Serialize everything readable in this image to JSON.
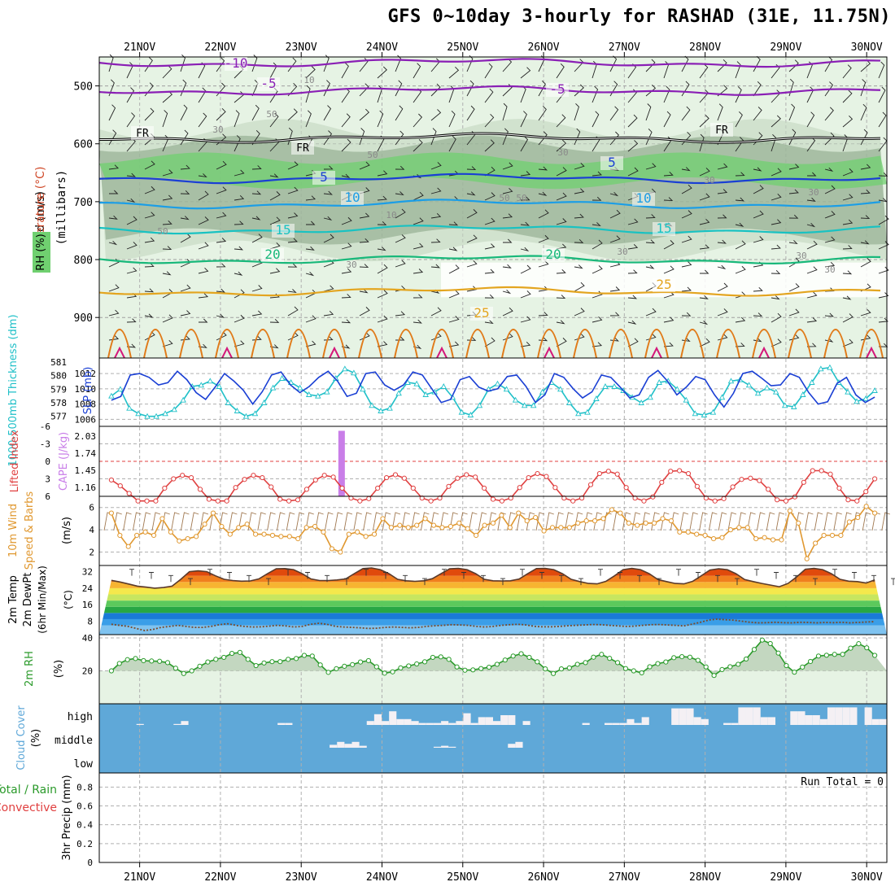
{
  "header": {
    "title": "GFS 0~10day 3-hourly for RASHAD (31E, 11.75N)"
  },
  "colors": {
    "purple": "#8a1fb5",
    "navy": "#1a3fd4",
    "sky": "#1c9ee6",
    "teal": "#19c2c2",
    "green": "#18b87a",
    "gold": "#e3a520",
    "orange": "#e07b1a",
    "magenta": "#d4187a",
    "rh_light": "#e6f3e4",
    "rh_mid": "#c3d7c0",
    "rh_dark": "#8ca88a",
    "rh_green": "#70d070",
    "slp": "#1a3fd4",
    "thickness": "#20c0c8",
    "lifted": "#e04040",
    "cape": "#c97ee8",
    "wind10": "#e09830",
    "barb": "#a07850",
    "rh2m": "#2a9a2a",
    "cloud": "#5fa8d8",
    "cloud_fill": "#f4f0f4"
  },
  "chart_data": [
    {
      "type": "line",
      "panel": "cross-section",
      "ylabels": {
        "wind": "Wind (m/s)",
        "temperature": "Temperature (°C)",
        "rh": "RH (%)",
        "units": "(millibars)"
      },
      "yticks": [
        "500",
        "600",
        "700",
        "800",
        "900"
      ],
      "ylim": [
        970,
        450
      ],
      "temperature_contours": [
        {
          "label": "-10",
          "level": 460
        },
        {
          "label": "-5",
          "level": 508
        },
        {
          "label": "FR",
          "level": 590
        },
        {
          "label": "5",
          "level": 660
        },
        {
          "label": "10",
          "level": 704
        },
        {
          "label": "15",
          "level": 748
        },
        {
          "label": "20",
          "level": 800
        },
        {
          "label": "25",
          "level": 855
        }
      ],
      "rh_contours": [
        "30",
        "50",
        "10",
        "50",
        "30",
        "50",
        "10",
        "30",
        "30",
        "30",
        "50",
        "30",
        "50",
        "30",
        "30"
      ],
      "contour_labels": [
        "-10",
        "-5",
        "-5",
        "FR",
        "FR",
        "FR",
        "5",
        "5",
        "10",
        "10",
        "15",
        "15",
        "20",
        "20",
        "25",
        "25"
      ]
    },
    {
      "type": "line",
      "panel": "slp-thickness",
      "ylabels": {
        "thickness": "1000-500mb Thickness (dm)",
        "slp": "SLP (mb)"
      },
      "left_ticks": [
        "581",
        "580",
        "579",
        "578",
        "577"
      ],
      "right_ticks": [
        "1012",
        "1010",
        "1008",
        "1006"
      ],
      "thickness_ylim": [
        576.5,
        581
      ],
      "slp_ylim": [
        1005.5,
        1013.5
      ],
      "slp_values": [
        1008.5,
        1009,
        1011.8,
        1012,
        1011.5,
        1010.5,
        1010.8,
        1012.3,
        1011.2,
        1009.5,
        1008.6,
        1010.2,
        1012,
        1011,
        1009.8,
        1008,
        1009.6,
        1011.8,
        1012.2,
        1010.5,
        1009.5,
        1010.3,
        1011.5,
        1012.3,
        1011,
        1009,
        1009.4,
        1012,
        1012.2,
        1010.5,
        1009.8,
        1010.5,
        1012.2,
        1011.8,
        1010,
        1008.2,
        1008.6,
        1011.2,
        1011.6,
        1010.2,
        1009.7,
        1010,
        1011.6,
        1011.8,
        1010.3,
        1008.2,
        1009.2,
        1012,
        1011.5,
        1010,
        1008.8,
        1009.6,
        1011.8,
        1011.5,
        1010.2,
        1008.8,
        1009.2,
        1011.5,
        1012.4,
        1011,
        1009.2,
        1010.2,
        1011.6,
        1011.2,
        1009.2,
        1007.6,
        1009.4,
        1012,
        1012.3,
        1011.4,
        1010.4,
        1010.5,
        1012,
        1011.5,
        1009.5,
        1008,
        1008.3,
        1010.7,
        1011.5,
        1009.2,
        1008.2,
        1008.9
      ],
      "thickness_values": [
        578.5,
        579,
        577.6,
        577.2,
        577,
        577,
        577.2,
        577.5,
        578.2,
        579.2,
        579.3,
        579.6,
        579.2,
        578,
        577.4,
        577,
        577.2,
        578,
        579.1,
        579.8,
        579.5,
        579.1,
        578.6,
        578.5,
        578.8,
        579.8,
        580.5,
        580.2,
        579,
        577.8,
        577.4,
        577.6,
        578.7,
        579.5,
        579.4,
        578.6,
        578.8,
        579.2,
        578.4,
        577.3,
        577.1,
        577.8,
        579,
        579.4,
        579,
        578.2,
        577.8,
        577.8,
        578.8,
        579.5,
        579,
        578,
        577.2,
        577.3,
        578.3,
        579.2,
        579.2,
        578.9,
        578.4,
        578,
        578.4,
        579.5,
        579.6,
        579,
        578.2,
        577.2,
        577.1,
        577.3,
        578.4,
        579.6,
        579.7,
        579.3,
        578.7,
        579.1,
        578.8,
        577.8,
        577.7,
        578.6,
        579.5,
        580.5,
        580.6,
        579.5,
        578.8,
        578.1,
        578.3,
        578.9
      ]
    },
    {
      "type": "bar",
      "panel": "lifted-cape",
      "ylabels": {
        "lifted": "Lifted Index",
        "cape": "CAPE (J/kg)"
      },
      "left_ticks": [
        "-6",
        "-3",
        "0",
        "3",
        "6"
      ],
      "right_ticks": [
        "2.03",
        "1.74",
        "1.45",
        "1.16"
      ],
      "ylim": [
        6,
        -6
      ],
      "cape_bars": [
        {
          "x": 23.5,
          "value": 2.03
        }
      ],
      "lifted_values": [
        3.2,
        4.2,
        5.5,
        7,
        8,
        7.5,
        4.6,
        3,
        2.4,
        2.8,
        4.8,
        6.5,
        7.5,
        6.8,
        4.5,
        3.1,
        2.4,
        2.8,
        4.4,
        6.5,
        7.6,
        6.6,
        4.8,
        3.2,
        2.4,
        2.7,
        4.6,
        6.3,
        7.4,
        6.4,
        4.6,
        2.8,
        2.3,
        2.9,
        4.6,
        6.3,
        7.4,
        6.3,
        4.3,
        2.9,
        2.3,
        2.7,
        4.6,
        6.5,
        7.4,
        6.3,
        4.5,
        2.8,
        2.1,
        2.6,
        4.5,
        6.3,
        7.5,
        6.3,
        4,
        2.1,
        1.7,
        2.2,
        4.5,
        6.3,
        7.4,
        6.1,
        3.6,
        1.7,
        1.6,
        2.1,
        4.3,
        6.3,
        7.4,
        6.4,
        4.4,
        3.1,
        2.9,
        3.3,
        4.8,
        6.6,
        7.5,
        6.1,
        3.6,
        1.6,
        1.6,
        2.2,
        4.6,
        6.6,
        7.4,
        5.2,
        3
      ]
    },
    {
      "type": "line",
      "panel": "wind10",
      "ylabels": {
        "wind10": "10m Wind",
        "speed": "Speed & Barbs",
        "units": "(m/s)"
      },
      "yticks": [
        "6",
        "4",
        "2"
      ],
      "ylim": [
        0.8,
        7
      ],
      "values": [
        5.5,
        3.5,
        2.5,
        3.5,
        3.8,
        3.5,
        5,
        3.8,
        3,
        3.2,
        3.4,
        4.5,
        5.5,
        4.3,
        3.6,
        4.2,
        4.5,
        3.6,
        3.6,
        3.5,
        3.4,
        3.4,
        3.2,
        4.2,
        4.3,
        3.8,
        2.3,
        2,
        3.6,
        3.8,
        3.4,
        3.6,
        5,
        4.2,
        4.4,
        4.2,
        4.4,
        5,
        4.4,
        4.2,
        4.3,
        4.6,
        4.1,
        3.5,
        4.4,
        4.6,
        5.3,
        4.2,
        5.5,
        4.8,
        5.1,
        3.9,
        4.2,
        4.2,
        4.2,
        4.6,
        4.8,
        4.8,
        5,
        5.8,
        5.5,
        4.6,
        4.4,
        4.6,
        4.6,
        5,
        4.8,
        3.8,
        3.8,
        3.6,
        3.5,
        3.2,
        3.3,
        4,
        4.2,
        4.2,
        3.2,
        3.3,
        3.1,
        3.1,
        5.7,
        4.6,
        1.4,
        2.8,
        3.5,
        3.5,
        3.5,
        4.7,
        5.1,
        6.1,
        5.5
      ]
    },
    {
      "type": "area",
      "panel": "temp-dewpt",
      "ylabels": {
        "temp": "2m Temp",
        "dewpt": "2m DewPt",
        "minmax": "(6hr Min/Max)",
        "units": "(°C)"
      },
      "yticks": [
        "32",
        "24",
        "16",
        "8"
      ],
      "ylim": [
        1.5,
        35
      ],
      "temp_values": [
        27.8,
        27,
        26,
        25,
        24.5,
        24,
        24.3,
        25,
        28.3,
        32,
        32.4,
        32,
        30,
        28.3,
        27.7,
        27.4,
        27.5,
        28.5,
        31,
        33.4,
        33.5,
        33,
        31,
        28.5,
        27.7,
        27.7,
        28,
        28.5,
        31,
        33.5,
        33.8,
        33,
        31,
        28.3,
        27.6,
        27.3,
        27.6,
        28.6,
        31,
        33.4,
        33.6,
        33,
        31,
        28.3,
        27.6,
        27.5,
        27.6,
        28.4,
        31,
        33.5,
        33.6,
        33,
        31,
        28.3,
        27.2,
        26.3,
        26.1,
        27.3,
        30,
        33,
        33.6,
        33,
        31,
        28.2,
        27.2,
        26.3,
        26.1,
        27.3,
        30,
        32.8,
        33.4,
        33,
        31,
        28.2,
        27.2,
        26.3,
        25.5,
        24.7,
        26.3,
        29.5,
        33.2,
        33.6,
        33,
        31,
        28.3,
        27.4,
        27.2,
        26.5,
        28
      ],
      "dewpt_values": [
        6.5,
        6,
        5.5,
        4.5,
        3.5,
        4,
        5,
        5.5,
        6,
        5.5,
        5,
        5,
        5.5,
        6.3,
        6.8,
        6,
        5.5,
        5.2,
        5.3,
        5.6,
        6,
        5.7,
        5.2,
        5.5,
        6.5,
        7,
        6.5,
        5.5,
        5.2,
        5,
        4.8,
        4.5,
        4.6,
        5,
        5.2,
        5,
        4.8,
        5,
        5.5,
        5.8,
        6,
        6.3,
        6.2,
        6,
        5.5,
        5.2,
        5.5,
        6,
        6.3,
        6.5,
        6.2,
        5.5,
        5.3,
        5.3,
        5.5,
        5.8,
        6,
        6.2,
        6.4,
        6.3,
        6,
        5.7,
        5.5,
        5.6,
        6,
        6.3,
        6.4,
        6.2,
        6,
        5.7,
        6.6,
        7.5,
        8.6,
        9,
        8.7,
        8.5,
        8,
        7.5,
        7.2,
        7.3,
        7.5,
        7.3,
        7.2,
        7.5,
        7.4,
        7.2,
        7.4,
        7.3,
        7.5,
        7.2,
        7.4,
        7.6,
        7.8
      ]
    },
    {
      "type": "line",
      "panel": "rh2m",
      "ylabels": {
        "rh": "2m RH",
        "units": "(%)"
      },
      "yticks": [
        "40",
        "20"
      ],
      "ylim": [
        0,
        42
      ],
      "values": [
        20,
        24.5,
        26.8,
        27.5,
        26.2,
        26,
        25.8,
        25,
        21.6,
        18.4,
        20,
        22.8,
        25.4,
        27,
        28.2,
        30.6,
        31.2,
        27,
        23.2,
        24.8,
        25.6,
        25.6,
        27,
        27.5,
        29.4,
        29,
        23.6,
        19.1,
        21.3,
        22.8,
        23.8,
        25.4,
        26.2,
        22.5,
        18.6,
        19.4,
        21.8,
        23,
        24.2,
        25.5,
        28.2,
        28.5,
        27,
        22.4,
        20.4,
        20.6,
        21.4,
        22.2,
        24,
        26.6,
        29,
        30.4,
        28.2,
        25.5,
        21.2,
        18.4,
        21.2,
        21.8,
        24,
        25,
        28.3,
        30,
        27.6,
        25,
        21.4,
        20,
        18.8,
        22.5,
        24.4,
        25.4,
        28,
        28.6,
        28.3,
        26.4,
        22.4,
        17.2,
        20.8,
        22.5,
        24,
        27.2,
        33,
        38.7,
        36.6,
        30.8,
        23.2,
        19.2,
        22.3,
        25.7,
        29,
        29.5,
        30,
        30,
        33.8,
        36.5,
        34,
        29.4
      ]
    },
    {
      "type": "bar",
      "panel": "cloud",
      "ylabels": {
        "cloud": "Cloud Cover",
        "units": "(%)"
      },
      "yticks": [
        "high",
        "middle",
        "low"
      ],
      "high_values": [
        0,
        0,
        0,
        0,
        0,
        5,
        0,
        0,
        0,
        0,
        5,
        20,
        0,
        0,
        0,
        0,
        0,
        0,
        0,
        0,
        0,
        0,
        0,
        0,
        10,
        10,
        0,
        0,
        0,
        0,
        0,
        0,
        0,
        0,
        0,
        0,
        20,
        55,
        20,
        70,
        30,
        30,
        20,
        10,
        10,
        10,
        20,
        10,
        20,
        60,
        10,
        40,
        40,
        20,
        50,
        50,
        0,
        20,
        0,
        0,
        0,
        0,
        0,
        0,
        0,
        10,
        0,
        0,
        10,
        10,
        10,
        30,
        10,
        40,
        0,
        0,
        0,
        85,
        85,
        85,
        40,
        30,
        0,
        0,
        10,
        10,
        90,
        90,
        90,
        40,
        40,
        0,
        0,
        70,
        70,
        50,
        50,
        30,
        90,
        90,
        90,
        90,
        0,
        90,
        30,
        30
      ],
      "middle_values": [
        0,
        0,
        0,
        0,
        0,
        0,
        0,
        0,
        0,
        0,
        0,
        0,
        0,
        0,
        0,
        0,
        0,
        0,
        0,
        0,
        0,
        0,
        0,
        0,
        0,
        0,
        0,
        0,
        0,
        0,
        0,
        15,
        30,
        20,
        30,
        10,
        0,
        0,
        0,
        0,
        0,
        0,
        0,
        0,
        0,
        5,
        10,
        5,
        0,
        0,
        0,
        0,
        0,
        0,
        0,
        20,
        30,
        0,
        0,
        0,
        0,
        0,
        0,
        0,
        0,
        0,
        0,
        0,
        0,
        0,
        0,
        0,
        0,
        0,
        0,
        0,
        0,
        0,
        0,
        0,
        0,
        0,
        0,
        0,
        0,
        0,
        0,
        0,
        0,
        0,
        0,
        0,
        0,
        0,
        0,
        0,
        0,
        0,
        0,
        0,
        0,
        0,
        0,
        0,
        0,
        0,
        0,
        0,
        0,
        0
      ]
    },
    {
      "type": "bar",
      "panel": "precip",
      "ylabels": {
        "total": "Total / Rain",
        "convective": "Convective",
        "precip": "3hr Precip (mm)"
      },
      "yticks": [
        "0.8",
        "0.6",
        "0.4",
        "0.2",
        "0"
      ],
      "ylim": [
        0,
        0.95
      ],
      "values": [
        0,
        0,
        0,
        0,
        0,
        0,
        0,
        0,
        0,
        0,
        0,
        0,
        0,
        0,
        0,
        0,
        0,
        0,
        0,
        0,
        0,
        0,
        0,
        0,
        0,
        0,
        0,
        0,
        0,
        0,
        0,
        0,
        0,
        0,
        0,
        0,
        0,
        0,
        0,
        0,
        0,
        0,
        0,
        0,
        0,
        0,
        0,
        0,
        0,
        0,
        0,
        0,
        0,
        0,
        0,
        0,
        0,
        0,
        0,
        0,
        0,
        0,
        0,
        0,
        0,
        0,
        0,
        0,
        0,
        0,
        0,
        0,
        0,
        0,
        0,
        0,
        0,
        0,
        0,
        0
      ],
      "run_total": "Run Total = 0"
    }
  ],
  "xaxis": {
    "dates": [
      "21NOV",
      "22NOV",
      "23NOV",
      "24NOV",
      "25NOV",
      "26NOV",
      "27NOV",
      "28NOV",
      "29NOV",
      "30NOV"
    ],
    "xlim": [
      20.5,
      30.25
    ]
  }
}
